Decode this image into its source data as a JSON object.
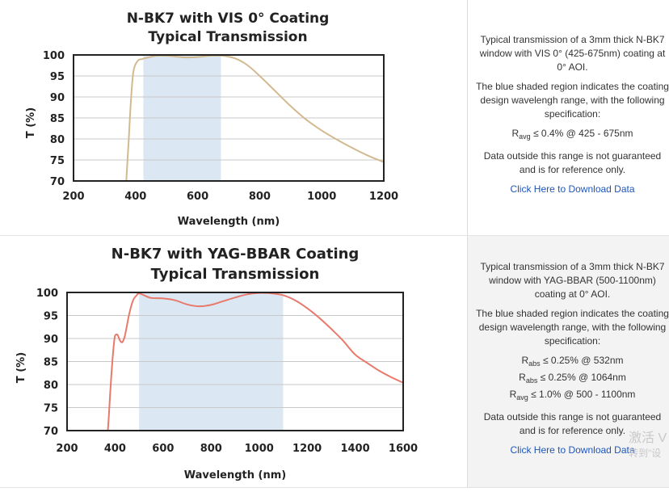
{
  "chart_data": [
    {
      "type": "line",
      "title": [
        "N-BK7 with VIS 0° Coating",
        "Typical Transmission"
      ],
      "xlabel": "Wavelength (nm)",
      "ylabel": "T (%)",
      "xlim": [
        200,
        1200
      ],
      "ylim": [
        70,
        100
      ],
      "xticks": [
        200,
        400,
        600,
        800,
        1000,
        1200
      ],
      "yticks": [
        70,
        75,
        80,
        85,
        90,
        95,
        100
      ],
      "shaded_range": [
        425,
        675
      ],
      "colors": {
        "line": "#d3b98f",
        "shade": "#dbe8f4"
      },
      "series": [
        {
          "name": "N-BK7 with VIS 0° Coating",
          "x": [
            370,
            378,
            385,
            392,
            400,
            410,
            420,
            440,
            470,
            500,
            530,
            560,
            600,
            640,
            680,
            720,
            760,
            800,
            850,
            900,
            950,
            1000,
            1050,
            1100,
            1150,
            1200
          ],
          "y": [
            70,
            80,
            89,
            95.5,
            97.8,
            98.8,
            99.0,
            99.4,
            99.8,
            99.8,
            99.6,
            99.4,
            99.5,
            99.8,
            99.8,
            99.2,
            97.6,
            95.0,
            91.4,
            87.8,
            84.6,
            82.0,
            79.8,
            77.8,
            76.0,
            74.5
          ]
        }
      ]
    },
    {
      "type": "line",
      "title": [
        "N-BK7 with YAG-BBAR Coating",
        "Typical Transmission"
      ],
      "xlabel": "Wavelength (nm)",
      "ylabel": "T (%)",
      "xlim": [
        200,
        1600
      ],
      "ylim": [
        70,
        100
      ],
      "xticks": [
        200,
        400,
        600,
        800,
        1000,
        1200,
        1400,
        1600
      ],
      "yticks": [
        70,
        75,
        80,
        85,
        90,
        95,
        100
      ],
      "shaded_range": [
        500,
        1100
      ],
      "colors": {
        "line": "#e8796b",
        "shade": "#dbe8f4"
      },
      "series": [
        {
          "name": "N-BK7 with YAG-BBAR Coating",
          "x": [
            370,
            375,
            380,
            385,
            390,
            395,
            400,
            410,
            420,
            430,
            440,
            450,
            460,
            475,
            490,
            500,
            520,
            550,
            600,
            650,
            700,
            750,
            800,
            850,
            900,
            950,
            1000,
            1050,
            1100,
            1150,
            1200,
            1250,
            1300,
            1350,
            1400,
            1450,
            1500,
            1550,
            1600
          ],
          "y": [
            70,
            74,
            78.5,
            82.5,
            86,
            88.7,
            90.6,
            90.8,
            89.6,
            89.2,
            90.4,
            93,
            95.6,
            98.3,
            99.4,
            99.8,
            99.4,
            98.8,
            98.7,
            98.3,
            97.4,
            97.0,
            97.3,
            98.1,
            98.9,
            99.6,
            99.9,
            99.8,
            99.4,
            98.3,
            96.6,
            94.5,
            92.1,
            89.5,
            86.5,
            84.7,
            83.0,
            81.6,
            80.4
          ]
        }
      ]
    }
  ],
  "descriptions": [
    {
      "intro": "Typical transmission of a 3mm thick N-BK7 window with VIS 0° (425-675nm) coating at 0° AOI.",
      "shaded_note": "The blue shaded region indicates the coating design wavelengh range, with the following specification:",
      "specs": [
        {
          "symbol": "R",
          "sub": "avg",
          "value": "≤ 0.4% @ 425 - 675nm"
        }
      ],
      "disclaimer": "Data outside this range is not guaranteed and is for reference only.",
      "link": "Click Here to Download Data"
    },
    {
      "intro": "Typical transmission of a 3mm thick N-BK7 window with YAG-BBAR (500-1100nm) coating at 0° AOI.",
      "shaded_note": "The blue shaded region indicates the coating design wavelength range, with the following specification:",
      "specs": [
        {
          "symbol": "R",
          "sub": "abs",
          "value": "≤ 0.25% @ 532nm"
        },
        {
          "symbol": "R",
          "sub": "abs",
          "value": "≤ 0.25% @ 1064nm"
        },
        {
          "symbol": "R",
          "sub": "avg",
          "value": "≤ 1.0% @ 500 - 1100nm"
        }
      ],
      "disclaimer": "Data outside this range is not guaranteed and is for reference only.",
      "link": "Click Here to Download Data"
    }
  ],
  "watermark": {
    "line1": "激活 V",
    "line2": "转到\"设"
  }
}
